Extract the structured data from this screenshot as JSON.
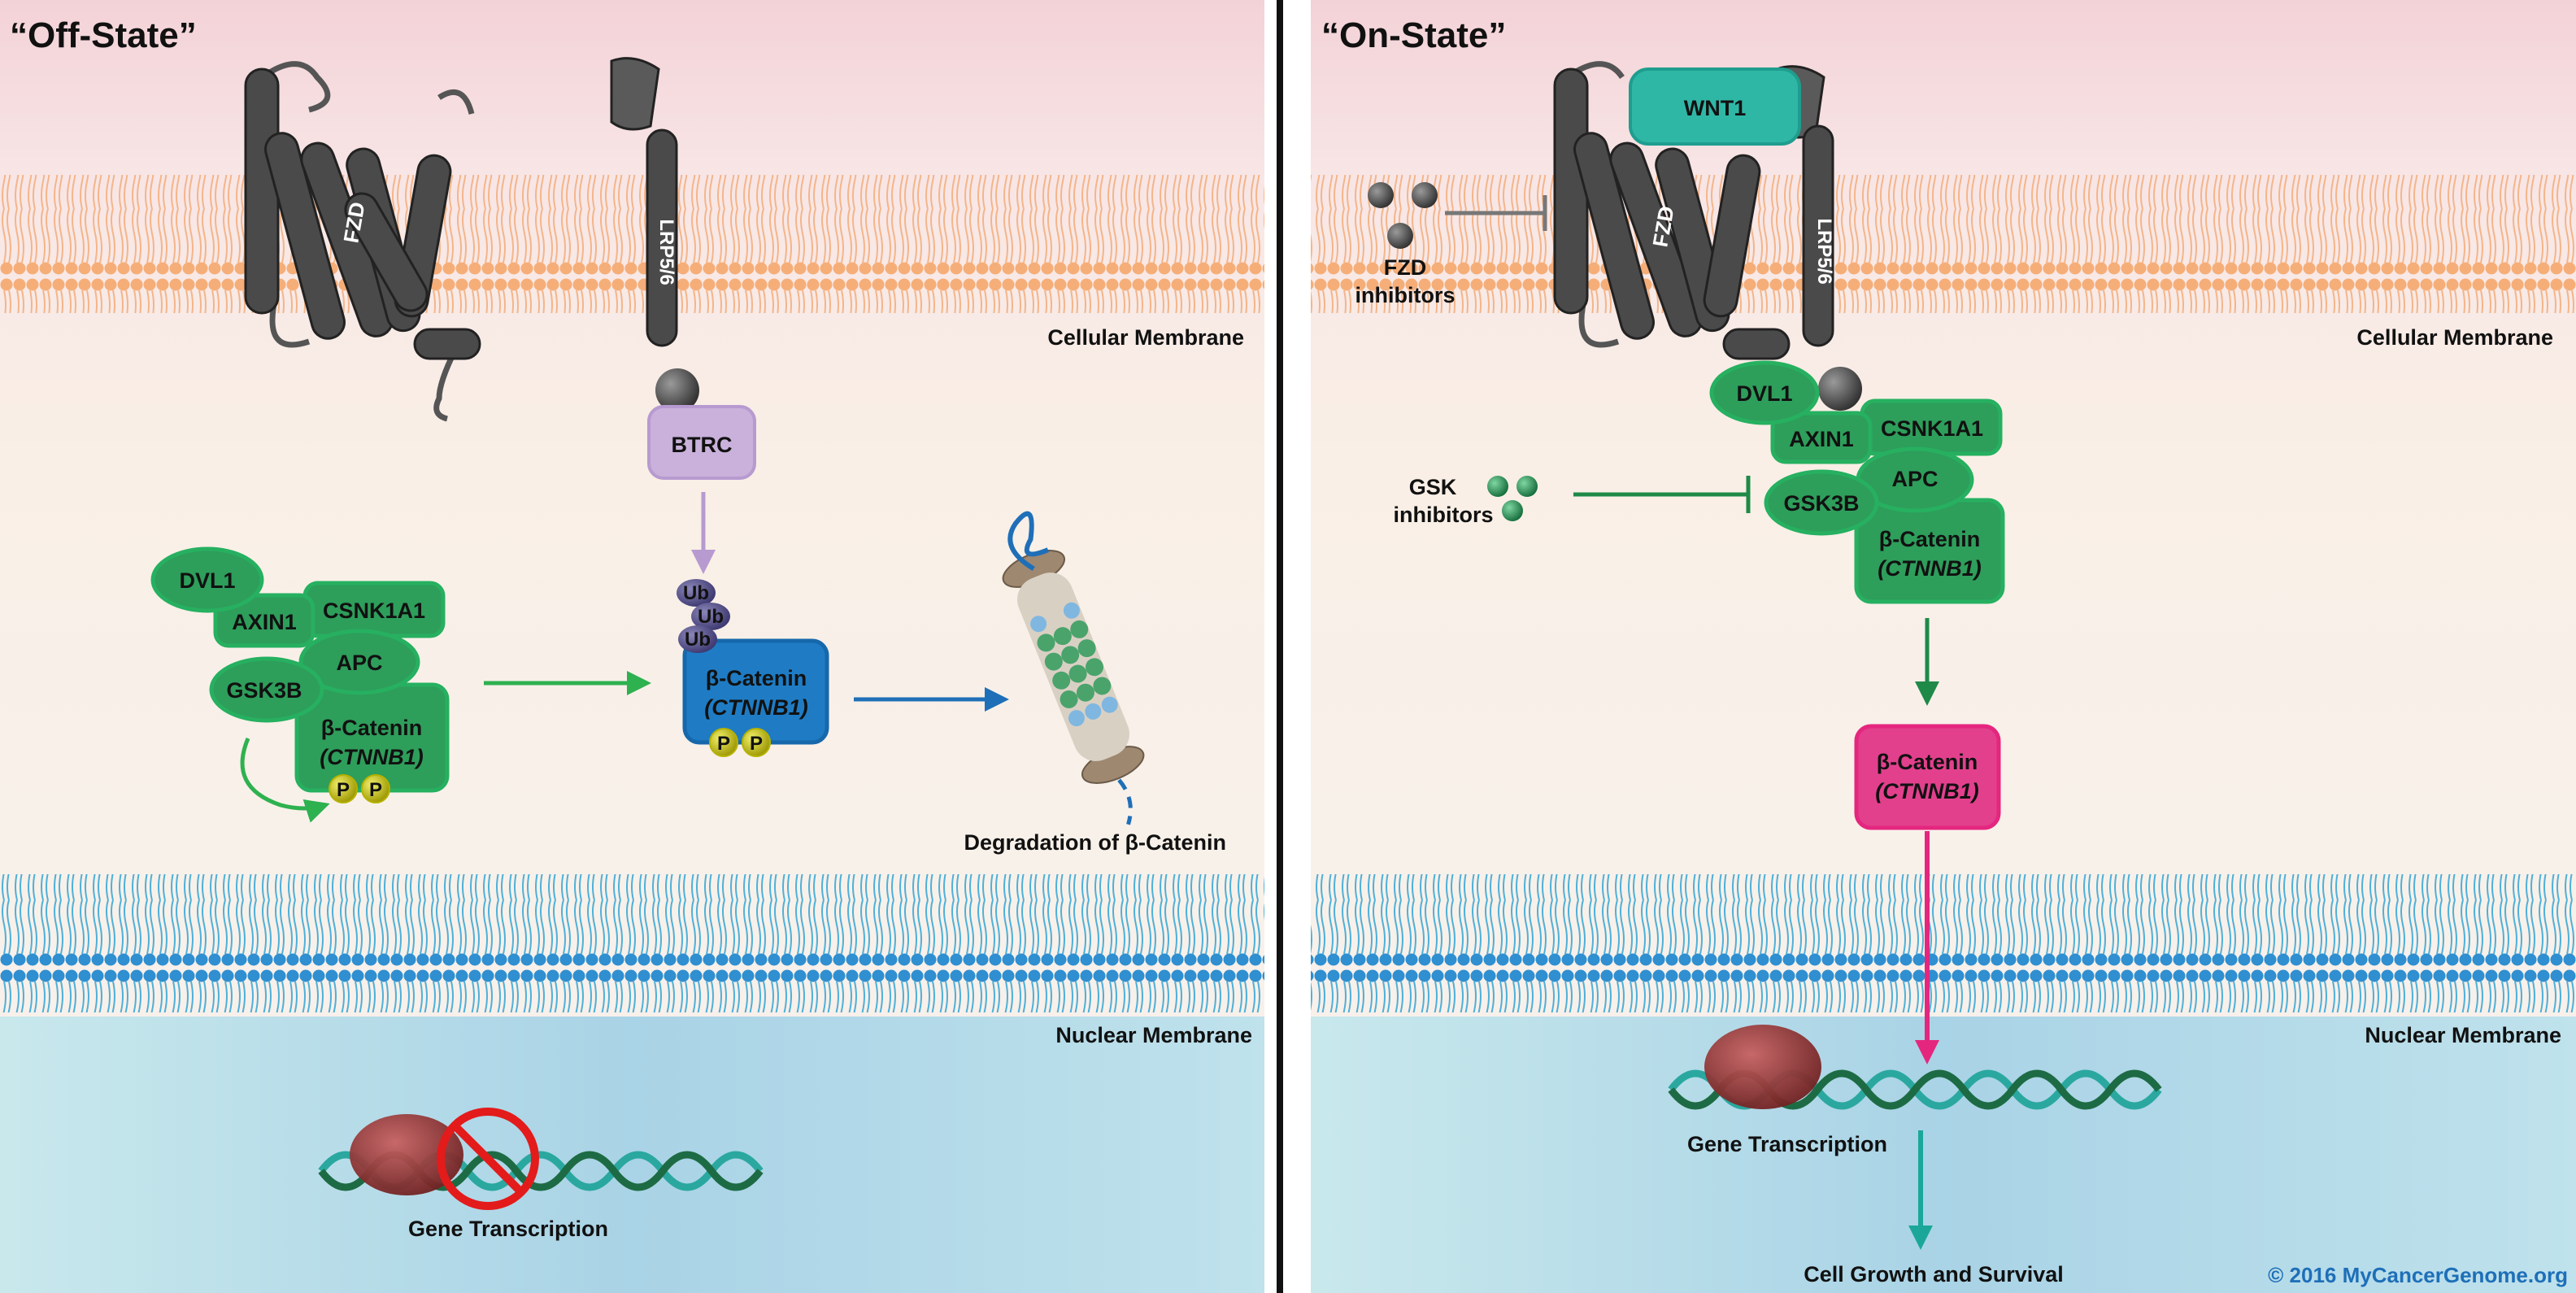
{
  "off_state": {
    "title": "“Off-State”",
    "receptor_fzd": "FZD",
    "receptor_lrp": "LRP5/6",
    "cell_membrane_label": "Cellular Membrane",
    "nuclear_membrane_label": "Nuclear Membrane",
    "btrc": "BTRC",
    "complex": {
      "dvl1": "DVL1",
      "axin1": "AXIN1",
      "csnk1a1": "CSNK1A1",
      "apc": "APC",
      "gsk3b": "GSK3B",
      "bcat_line1": "β-Catenin",
      "bcat_line2": "(CTNNB1)"
    },
    "ub": "Ub",
    "p": "P",
    "bcat_line1": "β-Catenin",
    "bcat_line2": "(CTNNB1)",
    "degradation": "Degradation of β-Catenin",
    "gene_transcription": "Gene Transcription"
  },
  "on_state": {
    "title": "“On-State”",
    "wnt": "WNT1",
    "receptor_fzd": "FZD",
    "receptor_lrp": "LRP5/6",
    "fzd_inhibitors_line1": "FZD",
    "fzd_inhibitors_line2": "inhibitors",
    "cell_membrane_label": "Cellular Membrane",
    "nuclear_membrane_label": "Nuclear Membrane",
    "gsk_inhibitors_line1": "GSK",
    "gsk_inhibitors_line2": "inhibitors",
    "complex": {
      "dvl1": "DVL1",
      "axin1": "AXIN1",
      "csnk1a1": "CSNK1A1",
      "apc": "APC",
      "gsk3b": "GSK3B",
      "bcat_line1": "β-Catenin",
      "bcat_line2": "(CTNNB1)"
    },
    "bcat_line1": "β-Catenin",
    "bcat_line2": "(CTNNB1)",
    "gene_transcription": "Gene Transcription",
    "outcome": "Cell Growth and Survival",
    "copyright": "© 2016 MyCancerGenome.org"
  },
  "colors": {
    "green": "#2e9e5b",
    "blue": "#1f7cc4",
    "pink": "#e23b8a",
    "purple": "#c4a9d8",
    "teal": "#2fb7a6",
    "gray": "#4a4a4a",
    "yellow": "#d7d21a",
    "membrane_orange": "#f3a46d",
    "membrane_blue": "#4aa8dc"
  }
}
